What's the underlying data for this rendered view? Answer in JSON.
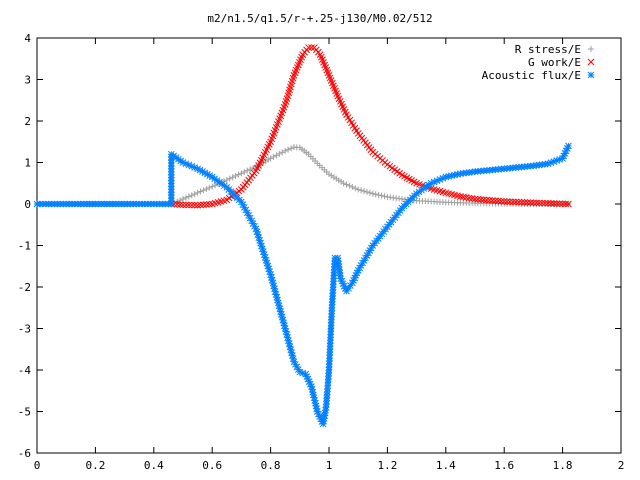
{
  "chart_data": {
    "type": "scatter",
    "title": "m2/n1.5/q1.5/r-+.25-j130/M0.02/512",
    "xlabel": "",
    "ylabel": "",
    "xlim": [
      0,
      2
    ],
    "ylim": [
      -6,
      4
    ],
    "xticks": [
      "0",
      "0.2",
      "0.4",
      "0.6",
      "0.8",
      "1",
      "1.2",
      "1.4",
      "1.6",
      "1.8",
      "2"
    ],
    "yticks": [
      "4",
      "3",
      "2",
      "1",
      "0",
      "-1",
      "-2",
      "-3",
      "-4",
      "-5",
      "-6"
    ],
    "grid": false,
    "legend_position": "top-right",
    "series": [
      {
        "name": "R stress/E",
        "marker": "plus",
        "color": "#a0a0a0",
        "points": [
          [
            0,
            0
          ],
          [
            0.46,
            0
          ],
          [
            0.5,
            0.12
          ],
          [
            0.55,
            0.27
          ],
          [
            0.6,
            0.42
          ],
          [
            0.65,
            0.58
          ],
          [
            0.7,
            0.74
          ],
          [
            0.75,
            0.9
          ],
          [
            0.8,
            1.1
          ],
          [
            0.85,
            1.28
          ],
          [
            0.88,
            1.37
          ],
          [
            0.9,
            1.36
          ],
          [
            0.93,
            1.2
          ],
          [
            0.96,
            0.98
          ],
          [
            1.0,
            0.72
          ],
          [
            1.05,
            0.5
          ],
          [
            1.1,
            0.35
          ],
          [
            1.15,
            0.25
          ],
          [
            1.2,
            0.17
          ],
          [
            1.25,
            0.12
          ],
          [
            1.3,
            0.08
          ],
          [
            1.4,
            0.04
          ],
          [
            1.5,
            0.02
          ],
          [
            1.6,
            0.01
          ],
          [
            1.7,
            0
          ],
          [
            1.82,
            0
          ]
        ]
      },
      {
        "name": "G work/E",
        "marker": "cross",
        "color": "#ff0000",
        "points": [
          [
            0.46,
            0
          ],
          [
            0.5,
            -0.02
          ],
          [
            0.55,
            -0.03
          ],
          [
            0.6,
            0
          ],
          [
            0.65,
            0.1
          ],
          [
            0.7,
            0.35
          ],
          [
            0.75,
            0.8
          ],
          [
            0.8,
            1.5
          ],
          [
            0.85,
            2.4
          ],
          [
            0.88,
            3.1
          ],
          [
            0.91,
            3.6
          ],
          [
            0.93,
            3.77
          ],
          [
            0.95,
            3.77
          ],
          [
            0.97,
            3.6
          ],
          [
            1.0,
            3.1
          ],
          [
            1.03,
            2.6
          ],
          [
            1.06,
            2.15
          ],
          [
            1.1,
            1.7
          ],
          [
            1.15,
            1.25
          ],
          [
            1.2,
            0.95
          ],
          [
            1.25,
            0.7
          ],
          [
            1.3,
            0.5
          ],
          [
            1.35,
            0.37
          ],
          [
            1.4,
            0.27
          ],
          [
            1.45,
            0.18
          ],
          [
            1.5,
            0.12
          ],
          [
            1.6,
            0.06
          ],
          [
            1.7,
            0.03
          ],
          [
            1.82,
            0
          ]
        ]
      },
      {
        "name": "Acoustic flux/E",
        "marker": "star",
        "color": "#0080ff",
        "points": [
          [
            0,
            0
          ],
          [
            0.1,
            0
          ],
          [
            0.2,
            0
          ],
          [
            0.3,
            0
          ],
          [
            0.4,
            0
          ],
          [
            0.46,
            0
          ],
          [
            0.46,
            1.2
          ],
          [
            0.5,
            1.0
          ],
          [
            0.55,
            0.85
          ],
          [
            0.6,
            0.65
          ],
          [
            0.65,
            0.4
          ],
          [
            0.7,
            0.05
          ],
          [
            0.75,
            -0.6
          ],
          [
            0.8,
            -1.7
          ],
          [
            0.85,
            -3.0
          ],
          [
            0.88,
            -3.8
          ],
          [
            0.9,
            -4.05
          ],
          [
            0.92,
            -4.1
          ],
          [
            0.94,
            -4.4
          ],
          [
            0.96,
            -5.0
          ],
          [
            0.98,
            -5.3
          ],
          [
            0.99,
            -4.9
          ],
          [
            1.0,
            -4.0
          ],
          [
            1.01,
            -2.5
          ],
          [
            1.02,
            -1.3
          ],
          [
            1.03,
            -1.3
          ],
          [
            1.04,
            -1.8
          ],
          [
            1.06,
            -2.1
          ],
          [
            1.08,
            -1.9
          ],
          [
            1.1,
            -1.6
          ],
          [
            1.15,
            -1.0
          ],
          [
            1.2,
            -0.55
          ],
          [
            1.25,
            -0.1
          ],
          [
            1.3,
            0.25
          ],
          [
            1.35,
            0.5
          ],
          [
            1.4,
            0.65
          ],
          [
            1.45,
            0.73
          ],
          [
            1.5,
            0.78
          ],
          [
            1.6,
            0.85
          ],
          [
            1.7,
            0.92
          ],
          [
            1.75,
            0.97
          ],
          [
            1.8,
            1.1
          ],
          [
            1.82,
            1.4
          ]
        ]
      }
    ]
  }
}
